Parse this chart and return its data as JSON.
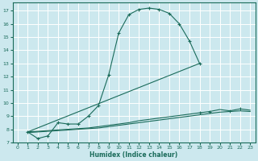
{
  "xlabel": "Humidex (Indice chaleur)",
  "bg_color": "#cce8ee",
  "grid_color": "#ffffff",
  "line_color": "#1a6b5a",
  "xlim": [
    -0.5,
    23.5
  ],
  "ylim": [
    7.0,
    17.6
  ],
  "xticks": [
    0,
    1,
    2,
    3,
    4,
    5,
    6,
    7,
    8,
    9,
    10,
    11,
    12,
    13,
    14,
    15,
    16,
    17,
    18,
    19,
    20,
    21,
    22,
    23
  ],
  "yticks": [
    7,
    8,
    9,
    10,
    11,
    12,
    13,
    14,
    15,
    16,
    17
  ],
  "line1_x": [
    1,
    2,
    3,
    4,
    5,
    6,
    7,
    8,
    9,
    10,
    11,
    12,
    13,
    14,
    15,
    16,
    17,
    18
  ],
  "line1_y": [
    7.8,
    7.3,
    7.5,
    8.5,
    8.4,
    8.4,
    9.0,
    9.8,
    12.1,
    15.3,
    16.7,
    17.1,
    17.2,
    17.1,
    16.8,
    16.0,
    14.7,
    13.0
  ],
  "line2_x": [
    1,
    2,
    3,
    4,
    5,
    6,
    7,
    8,
    9,
    10,
    11,
    12,
    13,
    14,
    15,
    16,
    17,
    18,
    19,
    20,
    21,
    22,
    23
  ],
  "line2_y": [
    7.8,
    7.85,
    7.9,
    7.95,
    8.0,
    8.05,
    8.1,
    8.2,
    8.3,
    8.4,
    8.5,
    8.65,
    8.75,
    8.85,
    8.95,
    9.05,
    9.15,
    9.25,
    9.35,
    9.5,
    9.4,
    9.55,
    9.45
  ],
  "line3_x": [
    1,
    2,
    3,
    4,
    5,
    6,
    7,
    8,
    9,
    10,
    11,
    12,
    13,
    14,
    15,
    16,
    17,
    18,
    19,
    20,
    21,
    22,
    23
  ],
  "line3_y": [
    7.75,
    7.8,
    7.85,
    7.9,
    7.95,
    8.0,
    8.05,
    8.1,
    8.2,
    8.3,
    8.4,
    8.5,
    8.6,
    8.7,
    8.8,
    8.9,
    9.0,
    9.1,
    9.2,
    9.3,
    9.35,
    9.4,
    9.35
  ],
  "line4_x": [
    1,
    18
  ],
  "line4_y": [
    7.8,
    13.0
  ],
  "line2_markers_x": [
    4,
    5,
    19,
    20,
    22,
    23
  ],
  "line2_markers_y": [
    7.95,
    8.0,
    9.35,
    9.5,
    9.55,
    9.45
  ]
}
